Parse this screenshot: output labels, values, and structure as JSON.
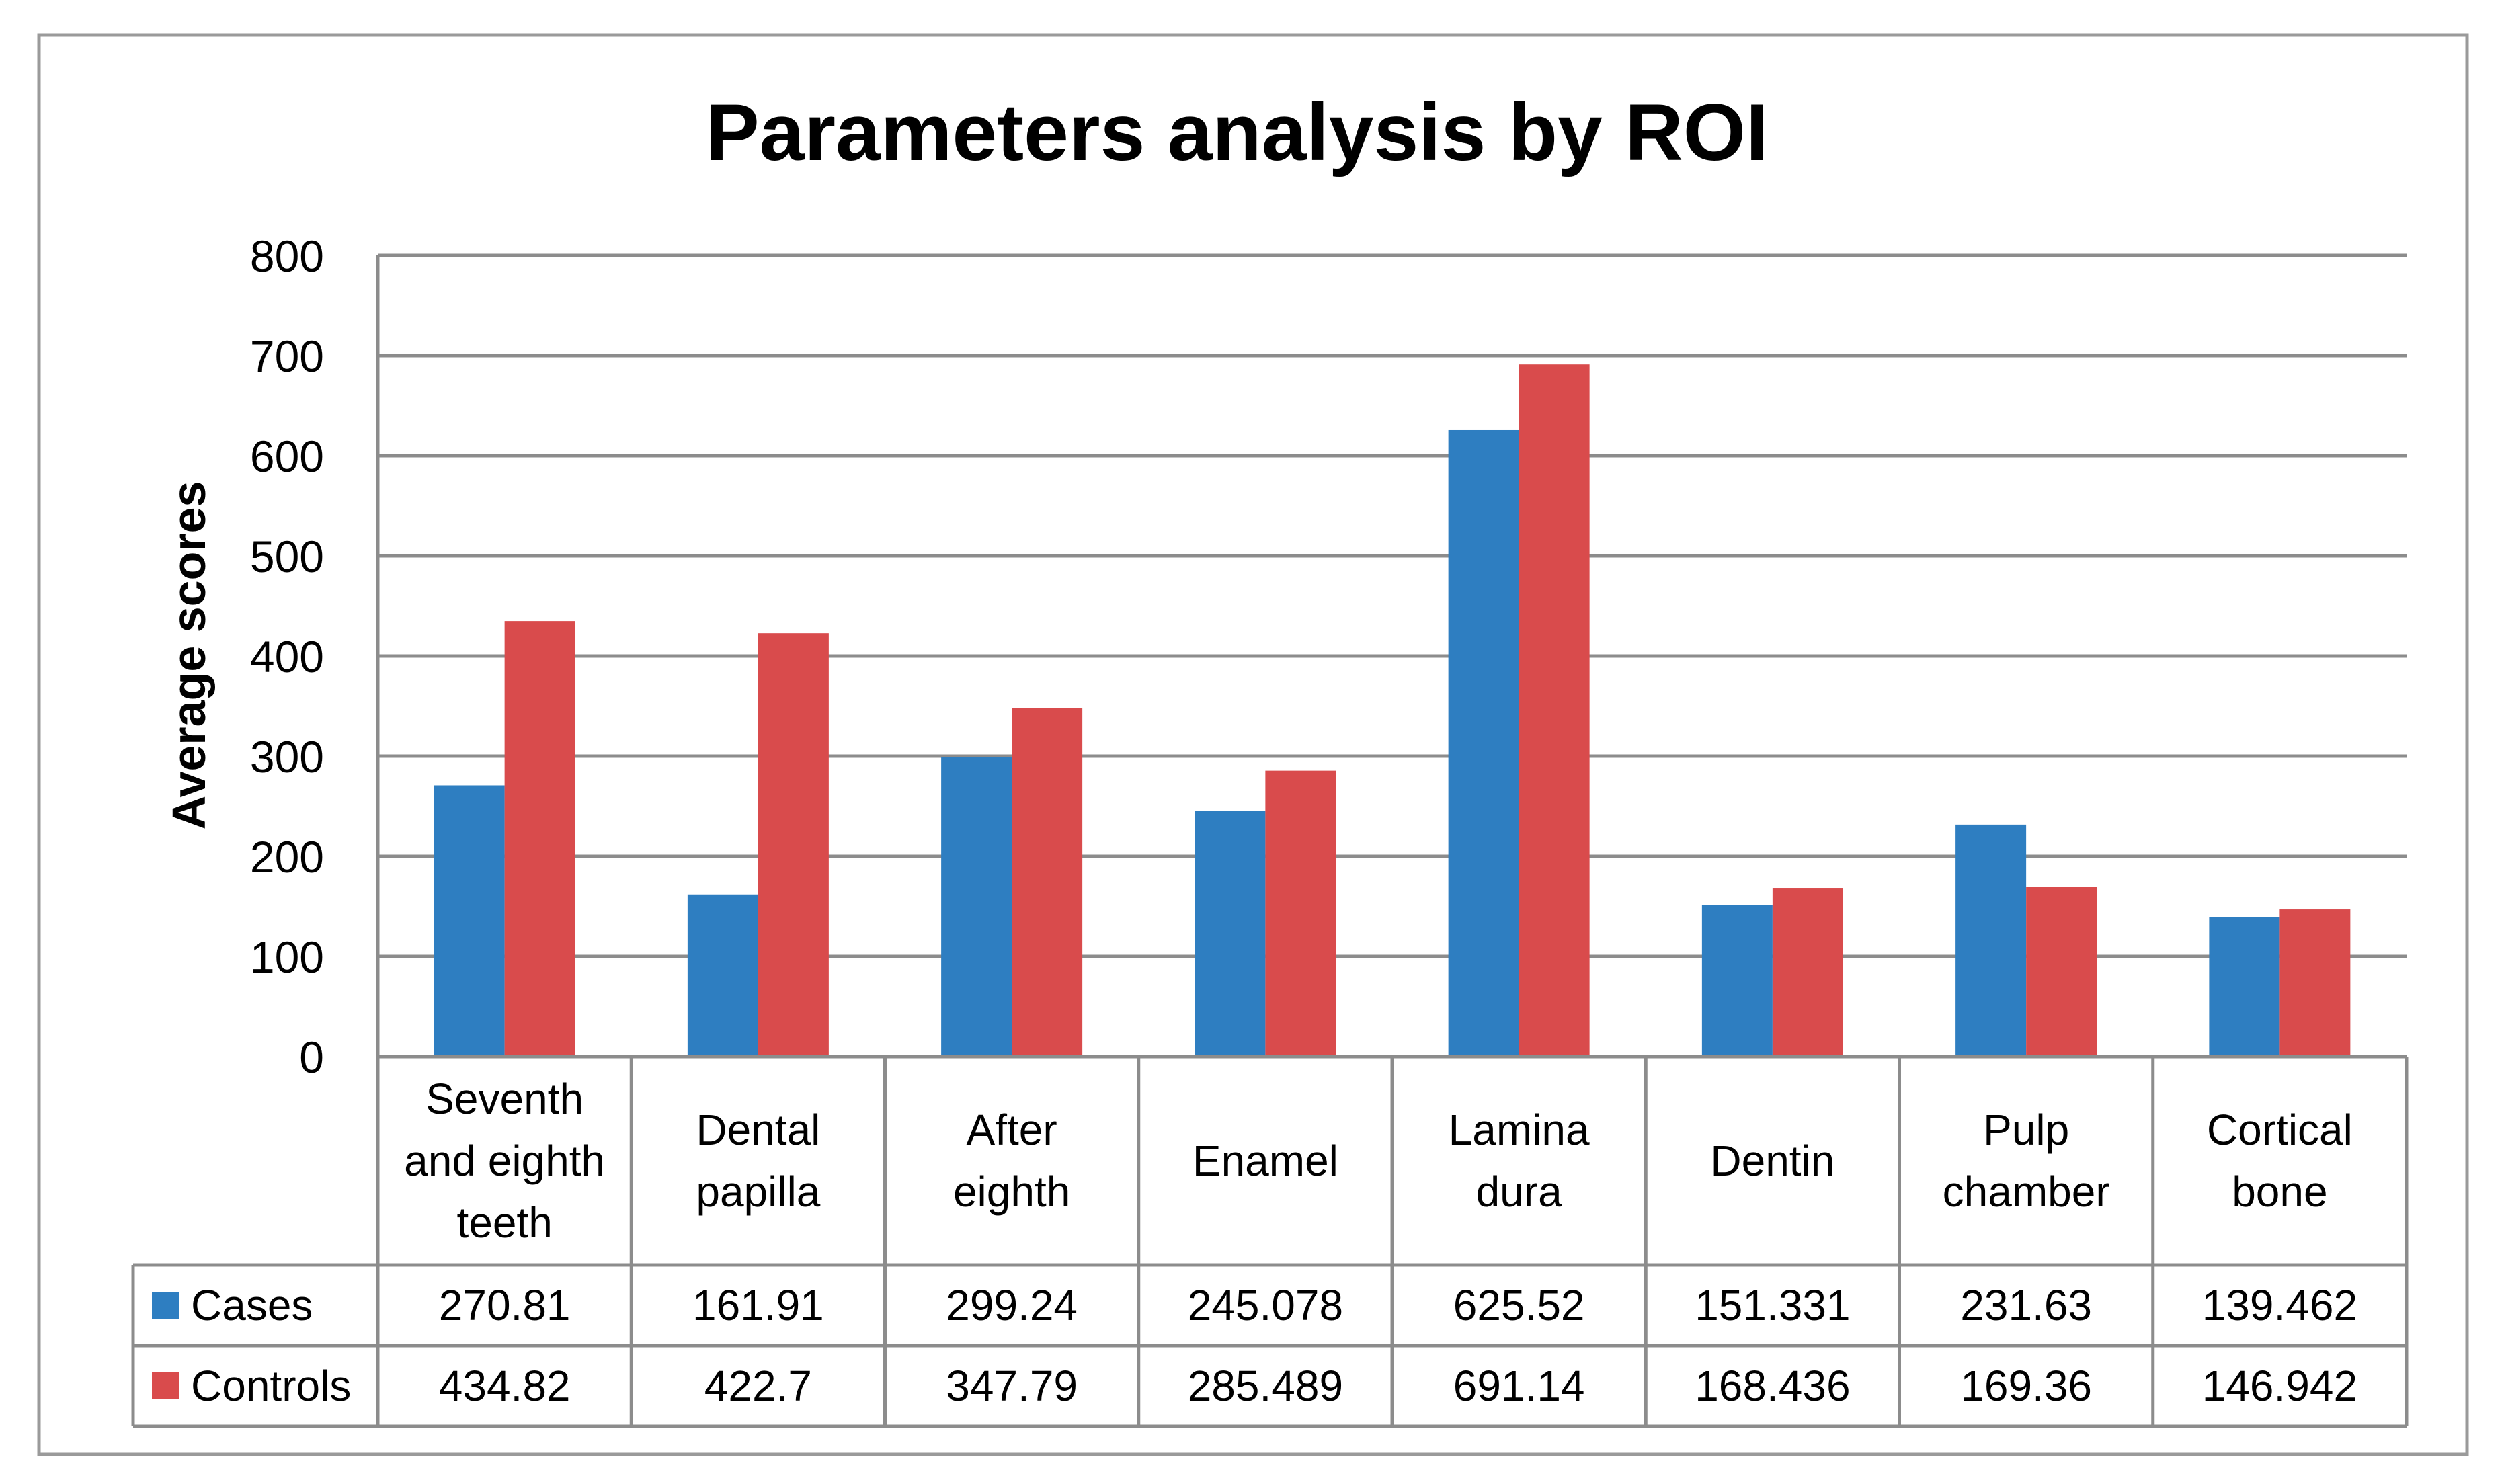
{
  "chart_data": {
    "type": "bar",
    "title": "Parameters analysis by ROI",
    "xlabel": "",
    "ylabel": "Average scores",
    "ylim": [
      0,
      800
    ],
    "yticks": [
      0,
      100,
      200,
      300,
      400,
      500,
      600,
      700,
      800
    ],
    "grid": true,
    "legend_position": "data-table",
    "categories": [
      [
        "Seventh",
        "and eighth",
        "teeth"
      ],
      [
        "Dental",
        "papilla"
      ],
      [
        "After",
        "eighth"
      ],
      [
        "Enamel"
      ],
      [
        "Lamina",
        "dura"
      ],
      [
        "Dentin"
      ],
      [
        "Pulp",
        "chamber"
      ],
      [
        "Cortical",
        "bone"
      ]
    ],
    "series": [
      {
        "name": "Cases",
        "color": "#2E7EC1",
        "values": [
          270.81,
          161.91,
          299.24,
          245.078,
          625.52,
          151.331,
          231.63,
          139.462
        ],
        "labels": [
          "270.81",
          "161.91",
          "299.24",
          "245.078",
          "625.52",
          "151.331",
          "231.63",
          "139.462"
        ]
      },
      {
        "name": "Controls",
        "color": "#D94B4C",
        "values": [
          434.82,
          422.7,
          347.79,
          285.489,
          691.14,
          168.436,
          169.36,
          146.942
        ],
        "labels": [
          "434.82",
          "422.7",
          "347.79",
          "285.489",
          "691.14",
          "168.436",
          "169.36",
          "146.942"
        ]
      }
    ]
  }
}
